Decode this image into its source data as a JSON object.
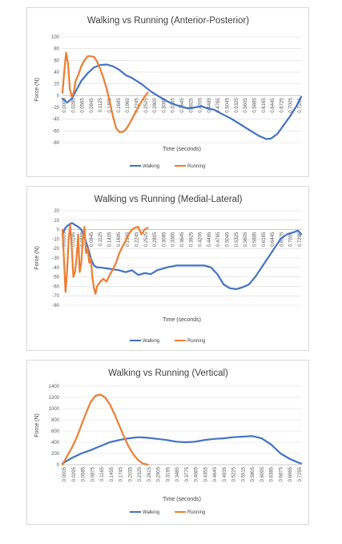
{
  "chart_data": [
    {
      "type": "line",
      "title": "Walking vs Running (Anterior-Posterior)",
      "xlabel": "Time (seconds)",
      "ylabel": "Force (N)",
      "ylim": [
        -80,
        100
      ],
      "yticks": [
        "100",
        "80",
        "60",
        "40",
        "20",
        "0",
        "-20",
        "-40",
        "-60",
        "-80"
      ],
      "yticks_values": [
        100,
        80,
        60,
        40,
        20,
        0,
        -20,
        -40,
        -60,
        -80
      ],
      "x_ticks": [
        "0.0005",
        "0.0285",
        "0.0565",
        "0.0845",
        "0.1125",
        "0.1405",
        "0.1685",
        "0.1965",
        "0.2245",
        "0.2525",
        "0.2805",
        "0.3085",
        "0.3365",
        "0.3645",
        "0.3925",
        "0.4205",
        "0.4485",
        "0.4765",
        "0.5045",
        "0.5325",
        "0.5605",
        "0.5885",
        "0.6165",
        "0.6445",
        "0.6725",
        "0.7005",
        "0.7285"
      ],
      "xlim": [
        0.0005,
        0.755
      ],
      "grid": true,
      "legend": "bottom",
      "series": [
        {
          "name": "Walking",
          "color": "#4472c4",
          "x": [
            0.0005,
            0.015,
            0.03,
            0.045,
            0.06,
            0.08,
            0.1,
            0.12,
            0.14,
            0.16,
            0.18,
            0.2,
            0.22,
            0.25,
            0.28,
            0.31,
            0.34,
            0.37,
            0.4,
            0.42,
            0.44,
            0.46,
            0.48,
            0.5,
            0.53,
            0.56,
            0.59,
            0.62,
            0.645,
            0.66,
            0.68,
            0.7,
            0.72,
            0.74,
            0.755
          ],
          "y": [
            -5,
            -12,
            -5,
            10,
            25,
            38,
            48,
            52,
            53,
            50,
            44,
            35,
            30,
            20,
            7,
            -3,
            -12,
            -18,
            -22,
            -20,
            -18,
            -22,
            -24,
            -30,
            -38,
            -48,
            -58,
            -68,
            -74,
            -73,
            -65,
            -50,
            -35,
            -18,
            -2
          ]
        },
        {
          "name": "Running",
          "color": "#ed7d31",
          "x": [
            0.0005,
            0.006,
            0.012,
            0.018,
            0.024,
            0.03,
            0.036,
            0.042,
            0.05,
            0.06,
            0.07,
            0.08,
            0.09,
            0.1,
            0.11,
            0.12,
            0.13,
            0.14,
            0.15,
            0.16,
            0.17,
            0.18,
            0.19,
            0.2,
            0.21,
            0.22,
            0.23,
            0.24,
            0.25,
            0.26,
            0.27
          ],
          "y": [
            5,
            40,
            73,
            55,
            10,
            -2,
            5,
            25,
            35,
            50,
            60,
            67,
            67,
            66,
            58,
            45,
            30,
            12,
            -10,
            -35,
            -55,
            -62,
            -62,
            -58,
            -50,
            -40,
            -30,
            -20,
            -10,
            -2,
            5
          ]
        }
      ]
    },
    {
      "type": "line",
      "title": "Walking vs Running (Medial-Lateral)",
      "xlabel": "Time (seconds)",
      "ylabel": "Force (N)",
      "ylim": [
        -80,
        20
      ],
      "yticks": [
        "20",
        "10",
        "0",
        "-10",
        "-20",
        "-30",
        "-40",
        "-50",
        "-60",
        "-70",
        "-80"
      ],
      "yticks_values": [
        20,
        10,
        0,
        -10,
        -20,
        -30,
        -40,
        -50,
        -60,
        -70,
        -80
      ],
      "x_ticks": [
        "0.0005",
        "0.0285",
        "0.0565",
        "0.0845",
        "0.1125",
        "0.1405",
        "0.1685",
        "0.1965",
        "0.2245",
        "0.2525",
        "0.2805",
        "0.3085",
        "0.3365",
        "0.3645",
        "0.3925",
        "0.4205",
        "0.4485",
        "0.4765",
        "0.5045",
        "0.5325",
        "0.5605",
        "0.5885",
        "0.6165",
        "0.6445",
        "0.6725",
        "0.7005",
        "0.7285"
      ],
      "xlim": [
        0.0005,
        0.755
      ],
      "grid": true,
      "legend": "bottom",
      "series": [
        {
          "name": "Walking",
          "color": "#4472c4",
          "x": [
            0.0005,
            0.01,
            0.02,
            0.03,
            0.04,
            0.05,
            0.06,
            0.07,
            0.08,
            0.09,
            0.1,
            0.11,
            0.12,
            0.14,
            0.16,
            0.18,
            0.2,
            0.22,
            0.24,
            0.26,
            0.28,
            0.3,
            0.33,
            0.36,
            0.39,
            0.42,
            0.45,
            0.47,
            0.49,
            0.51,
            0.53,
            0.55,
            0.57,
            0.59,
            0.61,
            0.63,
            0.65,
            0.67,
            0.69,
            0.71,
            0.73,
            0.745,
            0.755
          ],
          "y": [
            -5,
            2,
            5,
            7,
            5,
            3,
            0,
            -8,
            -18,
            -30,
            -38,
            -40,
            -40,
            -41,
            -42,
            -43,
            -45,
            -43,
            -48,
            -46,
            -47,
            -43,
            -40,
            -38,
            -38,
            -38,
            -38,
            -40,
            -47,
            -58,
            -62,
            -63,
            -61,
            -58,
            -50,
            -40,
            -30,
            -20,
            -10,
            -5,
            -3,
            -1,
            -5
          ]
        },
        {
          "name": "Running",
          "color": "#ed7d31",
          "x": [
            0.0005,
            0.005,
            0.01,
            0.015,
            0.02,
            0.025,
            0.03,
            0.035,
            0.04,
            0.045,
            0.05,
            0.055,
            0.06,
            0.065,
            0.07,
            0.075,
            0.08,
            0.085,
            0.09,
            0.095,
            0.1,
            0.105,
            0.11,
            0.12,
            0.13,
            0.14,
            0.15,
            0.16,
            0.17,
            0.18,
            0.19,
            0.2,
            0.21,
            0.22,
            0.23,
            0.24,
            0.25,
            0.26,
            0.27
          ],
          "y": [
            0,
            -30,
            -66,
            -45,
            -10,
            5,
            -20,
            -50,
            -45,
            -30,
            -5,
            -45,
            -35,
            -10,
            3,
            -25,
            -20,
            -35,
            -30,
            -50,
            -62,
            -68,
            -60,
            -55,
            -52,
            -55,
            -48,
            -42,
            -35,
            -25,
            -18,
            -12,
            -5,
            0,
            2,
            3,
            -5,
            0,
            2
          ]
        }
      ]
    },
    {
      "type": "line",
      "title": "Walking vs Running (Vertical)",
      "xlabel": "Time (seconds)",
      "ylabel": "Force (N)",
      "ylim": [
        0,
        1400
      ],
      "yticks": [
        "1400",
        "1200",
        "1000",
        "800",
        "600",
        "400",
        "200",
        "0"
      ],
      "yticks_values": [
        1400,
        1200,
        1000,
        800,
        600,
        400,
        200,
        0
      ],
      "x_ticks": [
        "0.0005",
        "0.0295",
        "0.0585",
        "0.0875",
        "0.1165",
        "0.1455",
        "0.1745",
        "0.2035",
        "0.2325",
        "0.2615",
        "0.2905",
        "0.3195",
        "0.3485",
        "0.3775",
        "0.4065",
        "0.4355",
        "0.4645",
        "0.4935",
        "0.5225",
        "0.5515",
        "0.5805",
        "0.6095",
        "0.6385",
        "0.6675",
        "0.6965",
        "0.7255"
      ],
      "xlim": [
        0.0005,
        0.755
      ],
      "grid": true,
      "legend": "bottom",
      "series": [
        {
          "name": "Walking",
          "color": "#4472c4",
          "x": [
            0.0005,
            0.03,
            0.06,
            0.09,
            0.12,
            0.15,
            0.18,
            0.21,
            0.24,
            0.27,
            0.3,
            0.33,
            0.36,
            0.39,
            0.42,
            0.45,
            0.48,
            0.51,
            0.54,
            0.57,
            0.6,
            0.63,
            0.66,
            0.69,
            0.72,
            0.745,
            0.755
          ],
          "y": [
            20,
            120,
            200,
            260,
            330,
            400,
            440,
            470,
            490,
            480,
            460,
            440,
            410,
            400,
            410,
            440,
            460,
            470,
            490,
            500,
            510,
            470,
            360,
            200,
            100,
            40,
            20
          ]
        },
        {
          "name": "Running",
          "color": "#ed7d31",
          "x": [
            0.0005,
            0.015,
            0.03,
            0.045,
            0.06,
            0.075,
            0.09,
            0.105,
            0.12,
            0.135,
            0.15,
            0.165,
            0.18,
            0.195,
            0.21,
            0.225,
            0.24,
            0.255,
            0.27
          ],
          "y": [
            0,
            150,
            300,
            480,
            700,
            920,
            1120,
            1230,
            1250,
            1200,
            1080,
            900,
            700,
            500,
            320,
            180,
            80,
            20,
            0
          ]
        }
      ]
    }
  ]
}
